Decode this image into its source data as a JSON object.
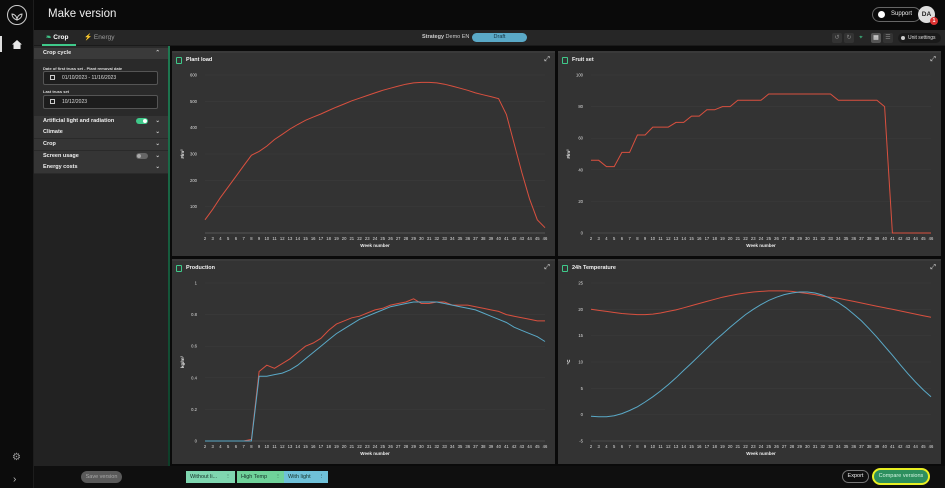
{
  "app": {
    "title": "Make version",
    "support_label": "Support",
    "avatar_initials": "DA",
    "avatar_badge": "1"
  },
  "tabs": [
    {
      "label": "Crop",
      "active": true,
      "icon": "leaf-icon"
    },
    {
      "label": "Energy",
      "active": false,
      "icon": "lightning-icon"
    }
  ],
  "strategy": {
    "label": "Strategy",
    "name": "Demo EN",
    "status": "Draft"
  },
  "toolbar": {
    "unit_settings_label": "Unit settings"
  },
  "panel": {
    "crop_cycle_label": "Crop cycle",
    "date_first_label": "Date of first truss set - Plant removal date",
    "date_first_value": "01/10/2023 - 11/16/2023",
    "last_truss_label": "Last truss set",
    "last_truss_value": "10/12/2023",
    "sections": [
      {
        "label": "Artificial light and radiation",
        "toggle": "on"
      },
      {
        "label": "Climate"
      },
      {
        "label": "Crop"
      },
      {
        "label": "Screen usage",
        "toggle": "off"
      },
      {
        "label": "Energy costs"
      }
    ]
  },
  "bottom": {
    "save_label": "Save version",
    "version_tabs": [
      {
        "label": "Without li...",
        "color": "#7fd6b0"
      },
      {
        "label": "High Temp",
        "color": "#6fd29a"
      },
      {
        "label": "With light",
        "color": "#6fc1d9"
      }
    ],
    "export_label": "Export",
    "compare_label": "Compare versions"
  },
  "colors": {
    "accent": "#3fc98a",
    "series_red": "#d9503f",
    "series_blue": "#5aa9c7"
  },
  "chart_data": [
    {
      "type": "line",
      "title": "Plant load",
      "xlabel": "Week number",
      "ylabel": "#/m²",
      "x": [
        2,
        3,
        4,
        5,
        6,
        7,
        8,
        9,
        10,
        11,
        12,
        13,
        14,
        15,
        16,
        17,
        18,
        19,
        20,
        21,
        22,
        23,
        24,
        25,
        26,
        27,
        28,
        29,
        30,
        31,
        32,
        33,
        34,
        35,
        36,
        37,
        38,
        39,
        40,
        41,
        42,
        43,
        44,
        45,
        46
      ],
      "ylim": [
        0,
        600
      ],
      "yticks": [
        100,
        200,
        300,
        400,
        500,
        600
      ],
      "series": [
        {
          "color": "#d9503f",
          "values": [
            50,
            90,
            135,
            175,
            215,
            255,
            295,
            310,
            330,
            355,
            375,
            395,
            412,
            428,
            440,
            452,
            465,
            478,
            490,
            502,
            512,
            522,
            532,
            542,
            550,
            558,
            565,
            570,
            572,
            572,
            570,
            565,
            558,
            550,
            542,
            532,
            525,
            518,
            510,
            450,
            340,
            230,
            130,
            50,
            20
          ]
        }
      ]
    },
    {
      "type": "line",
      "title": "Fruit set",
      "xlabel": "Week number",
      "ylabel": "#/m²",
      "x": [
        2,
        3,
        4,
        5,
        6,
        7,
        8,
        9,
        10,
        11,
        12,
        13,
        14,
        15,
        16,
        17,
        18,
        19,
        20,
        21,
        22,
        23,
        24,
        25,
        26,
        27,
        28,
        29,
        30,
        31,
        32,
        33,
        34,
        35,
        36,
        37,
        38,
        39,
        40,
        41,
        42,
        43,
        44,
        45,
        46
      ],
      "ylim": [
        0,
        100
      ],
      "yticks": [
        0,
        20,
        40,
        60,
        80,
        100
      ],
      "series": [
        {
          "color": "#d9503f",
          "values": [
            46,
            46,
            42,
            42,
            51,
            51,
            62,
            62,
            67,
            67,
            67,
            70,
            70,
            74,
            74,
            78,
            78,
            80,
            80,
            84,
            84,
            84,
            84,
            88,
            88,
            88,
            88,
            88,
            88,
            88,
            88,
            88,
            84,
            84,
            84,
            84,
            84,
            84,
            80,
            0,
            0,
            0,
            0,
            0,
            0
          ]
        }
      ]
    },
    {
      "type": "line",
      "title": "Production",
      "xlabel": "Week number",
      "ylabel": "kg/m²",
      "x": [
        2,
        3,
        4,
        5,
        6,
        7,
        8,
        9,
        10,
        11,
        12,
        13,
        14,
        15,
        16,
        17,
        18,
        19,
        20,
        21,
        22,
        23,
        24,
        25,
        26,
        27,
        28,
        29,
        30,
        31,
        32,
        33,
        34,
        35,
        36,
        37,
        38,
        39,
        40,
        41,
        42,
        43,
        44,
        45,
        46
      ],
      "ylim": [
        0,
        1
      ],
      "yticks": [
        0,
        0.2,
        0.4,
        0.6,
        0.8,
        1
      ],
      "series": [
        {
          "color": "#d9503f",
          "values": [
            0,
            0,
            0,
            0,
            0,
            0,
            0.01,
            0.44,
            0.48,
            0.46,
            0.49,
            0.52,
            0.56,
            0.6,
            0.62,
            0.65,
            0.7,
            0.74,
            0.76,
            0.78,
            0.79,
            0.81,
            0.83,
            0.84,
            0.86,
            0.87,
            0.88,
            0.9,
            0.87,
            0.87,
            0.88,
            0.88,
            0.86,
            0.86,
            0.86,
            0.85,
            0.84,
            0.83,
            0.82,
            0.8,
            0.79,
            0.78,
            0.77,
            0.76,
            0.76
          ]
        },
        {
          "color": "#5aa9c7",
          "values": [
            0,
            0,
            0,
            0,
            0,
            0,
            0,
            0.41,
            0.41,
            0.42,
            0.43,
            0.45,
            0.48,
            0.52,
            0.56,
            0.6,
            0.64,
            0.68,
            0.71,
            0.74,
            0.77,
            0.79,
            0.81,
            0.83,
            0.85,
            0.86,
            0.87,
            0.88,
            0.88,
            0.88,
            0.88,
            0.87,
            0.86,
            0.85,
            0.84,
            0.83,
            0.81,
            0.79,
            0.77,
            0.75,
            0.72,
            0.7,
            0.68,
            0.66,
            0.63
          ]
        }
      ]
    },
    {
      "type": "line",
      "title": "24h Temperature",
      "xlabel": "Week number",
      "ylabel": "°C",
      "x": [
        2,
        3,
        4,
        5,
        6,
        7,
        8,
        9,
        10,
        11,
        12,
        13,
        14,
        15,
        16,
        17,
        18,
        19,
        20,
        21,
        22,
        23,
        24,
        25,
        26,
        27,
        28,
        29,
        30,
        31,
        32,
        33,
        34,
        35,
        36,
        37,
        38,
        39,
        40,
        41,
        42,
        43,
        44,
        45,
        46
      ],
      "ylim": [
        -5,
        25
      ],
      "yticks": [
        -5,
        0,
        5,
        10,
        15,
        20,
        25
      ],
      "series": [
        {
          "color": "#d9503f",
          "values": [
            20,
            19.8,
            19.6,
            19.4,
            19.2,
            19.1,
            19,
            19,
            19.1,
            19.3,
            19.6,
            19.9,
            20.3,
            20.7,
            21.1,
            21.5,
            21.9,
            22.3,
            22.6,
            22.9,
            23.1,
            23.3,
            23.4,
            23.5,
            23.5,
            23.5,
            23.4,
            23.2,
            23,
            22.8,
            22.5,
            22.3,
            22.1,
            21.8,
            21.5,
            21.2,
            20.9,
            20.6,
            20.3,
            20,
            19.7,
            19.4,
            19.1,
            18.8,
            18.5
          ]
        },
        {
          "color": "#5aa9c7",
          "values": [
            -0.3,
            -0.4,
            -0.4,
            -0.2,
            0.2,
            0.8,
            1.5,
            2.4,
            3.4,
            4.5,
            5.7,
            7,
            8.4,
            9.8,
            11.2,
            12.6,
            14,
            15.3,
            16.6,
            17.8,
            19,
            20,
            20.9,
            21.7,
            22.3,
            22.8,
            23.1,
            23.3,
            23.3,
            23.1,
            22.7,
            22.1,
            21.3,
            20.3,
            19.1,
            17.8,
            16.3,
            14.7,
            13,
            11.3,
            9.5,
            7.8,
            6.2,
            4.7,
            3.4
          ]
        }
      ]
    }
  ]
}
